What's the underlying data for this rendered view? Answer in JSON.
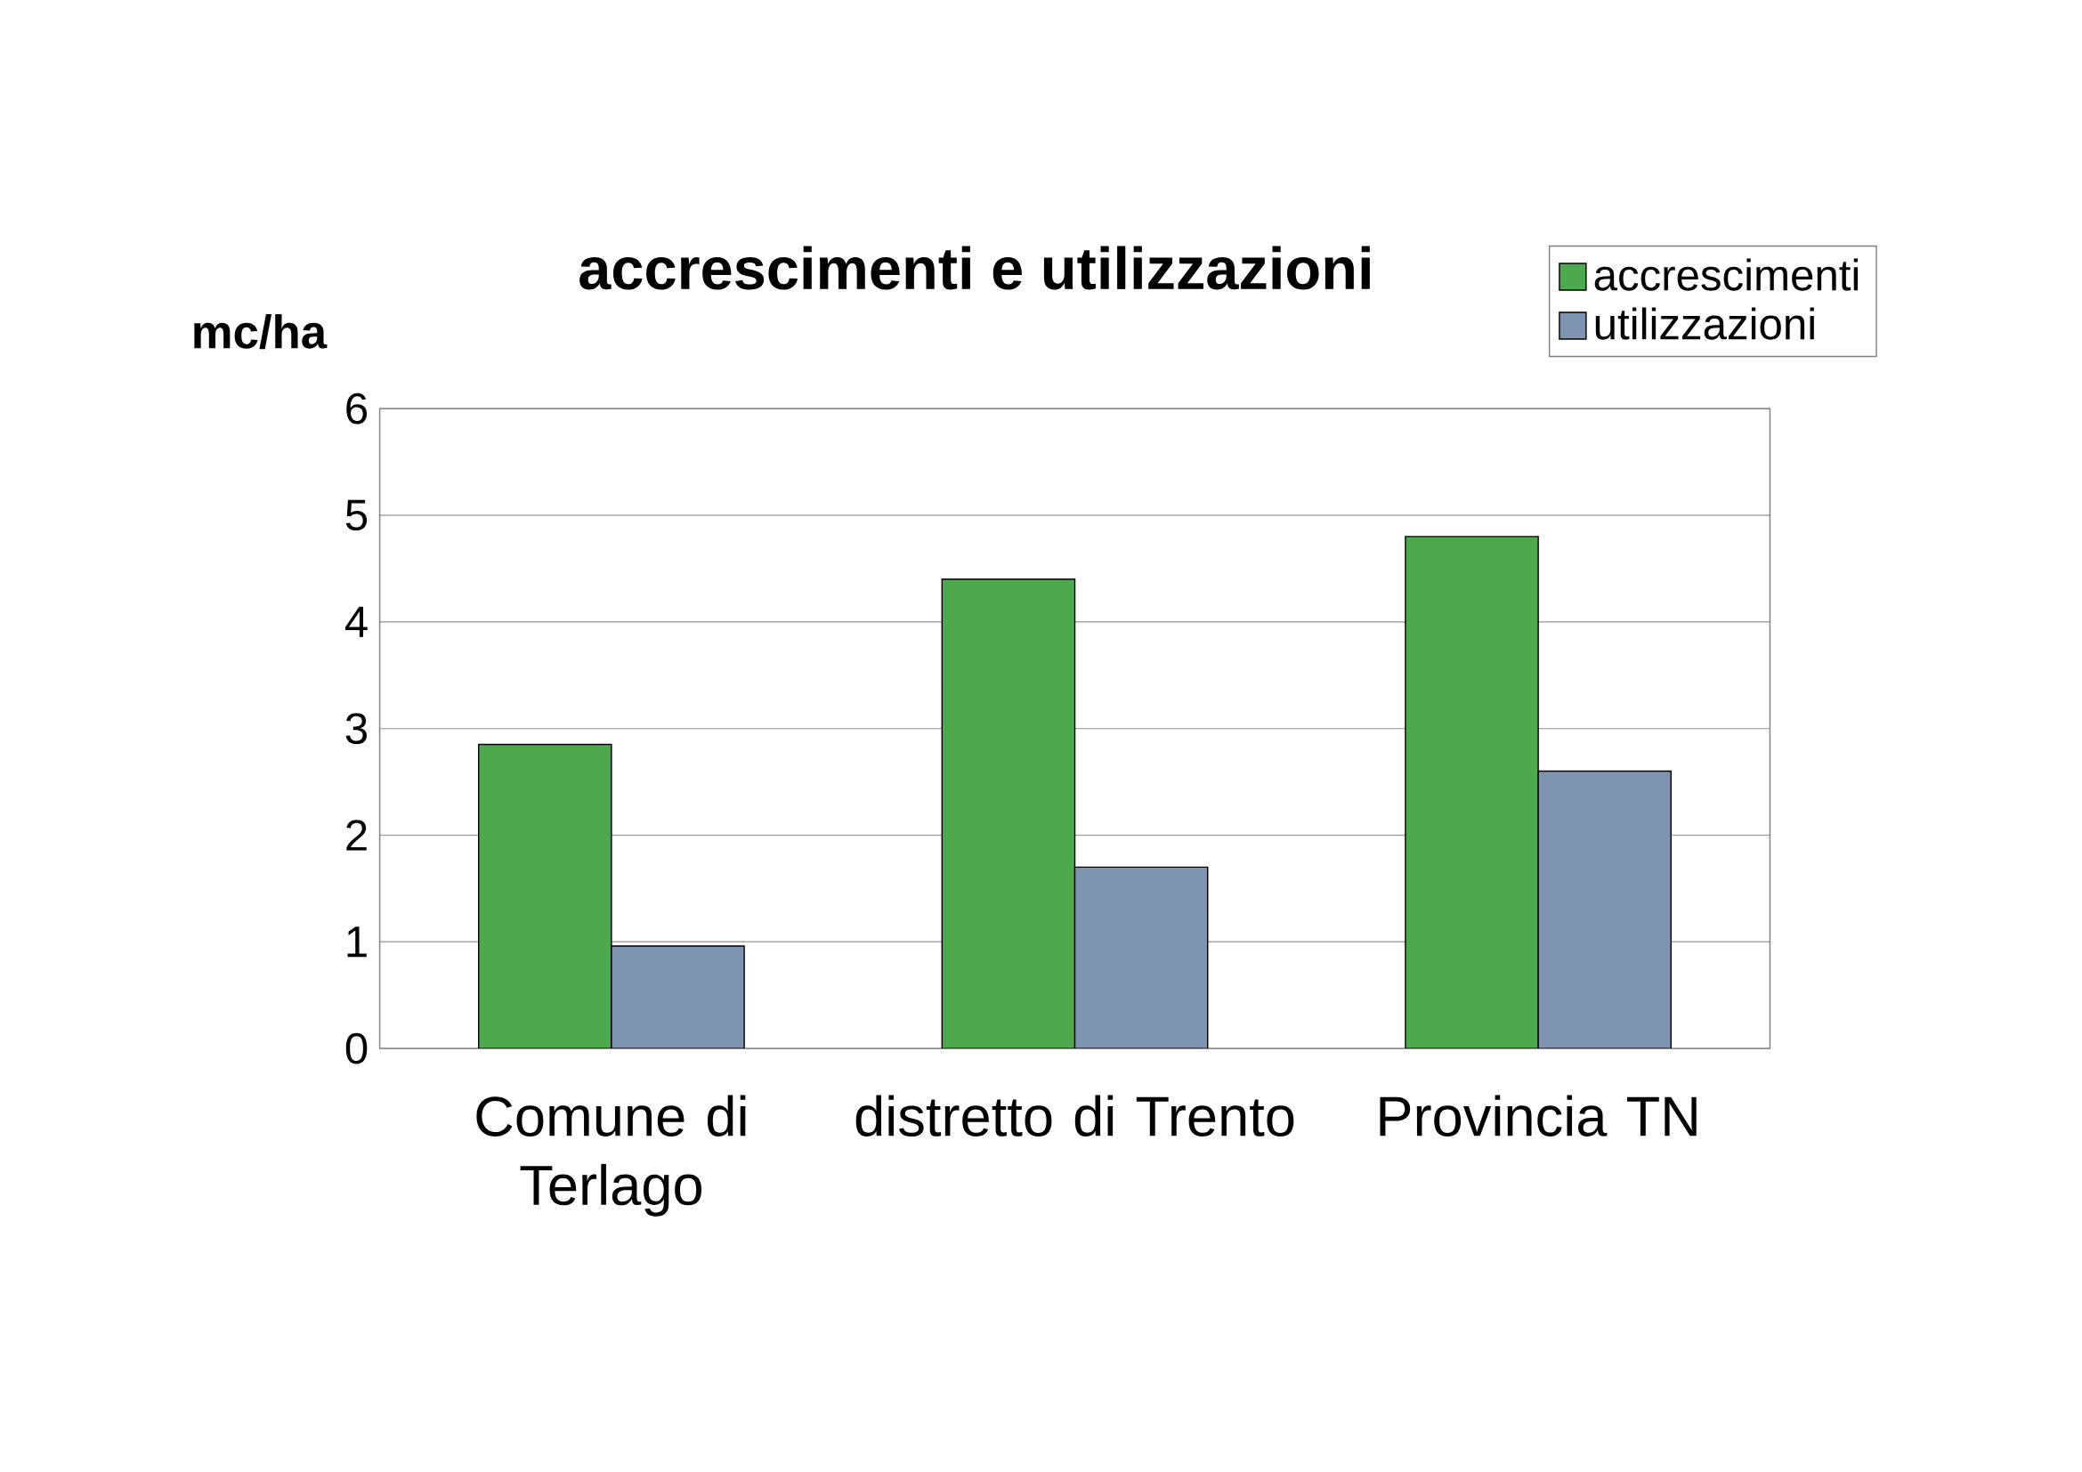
{
  "chart_data": {
    "type": "bar",
    "title": "accrescimenti e utilizzazioni",
    "ylabel": "mc/ha",
    "categories": [
      "Comune di Terlago",
      "distretto di Trento",
      "Provincia TN"
    ],
    "series": [
      {
        "name": "accrescimenti",
        "color": "#4ea84e",
        "values": [
          2.85,
          4.4,
          4.8
        ]
      },
      {
        "name": "utilizzazioni",
        "color": "#7f94b0",
        "values": [
          0.96,
          1.7,
          2.6
        ]
      }
    ],
    "ylim": [
      0,
      6
    ],
    "yticks": [
      0,
      1,
      2,
      3,
      4,
      5,
      6
    ],
    "grid": "y",
    "legend": "top right"
  }
}
